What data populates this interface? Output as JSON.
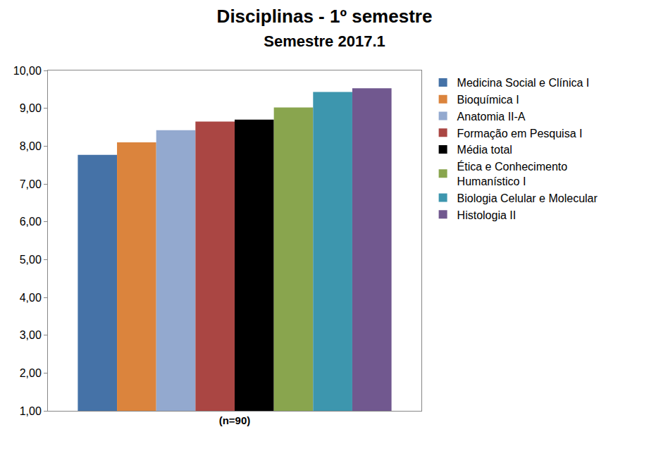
{
  "chart_data": {
    "type": "bar",
    "title": "Disciplinas - 1º semestre",
    "subtitle": "Semestre 2017.1",
    "categories": [
      "(n=90)"
    ],
    "series": [
      {
        "name": "Medicina Social e Clínica I",
        "color": "#4572a7",
        "values": [
          7.77
        ]
      },
      {
        "name": "Bioquímica I",
        "color": "#db843d",
        "values": [
          8.1
        ]
      },
      {
        "name": "Anatomia II-A",
        "color": "#93a9cf",
        "values": [
          8.42
        ]
      },
      {
        "name": "Formação em Pesquisa I",
        "color": "#aa4643",
        "values": [
          8.65
        ]
      },
      {
        "name": "Média total",
        "color": "#000000",
        "values": [
          8.7
        ]
      },
      {
        "name": "Ética e Conhecimento Humanístico I",
        "color": "#89a54e",
        "values": [
          9.02
        ]
      },
      {
        "name": "Biologia Celular e Molecular",
        "color": "#3d96ae",
        "values": [
          9.43
        ]
      },
      {
        "name": "Histologia II",
        "color": "#71588f",
        "values": [
          9.53
        ]
      }
    ],
    "ylim": [
      1,
      10
    ],
    "yticks": [
      {
        "value": 1,
        "label": "1,00"
      },
      {
        "value": 2,
        "label": "2,00"
      },
      {
        "value": 3,
        "label": "3,00"
      },
      {
        "value": 4,
        "label": "4,00"
      },
      {
        "value": 5,
        "label": "5,00"
      },
      {
        "value": 6,
        "label": "6,00"
      },
      {
        "value": 7,
        "label": "7,00"
      },
      {
        "value": 8,
        "label": "8,00"
      },
      {
        "value": 9,
        "label": "9,00"
      },
      {
        "value": 10,
        "label": "10,00"
      }
    ],
    "grid": false,
    "legend": "right"
  }
}
